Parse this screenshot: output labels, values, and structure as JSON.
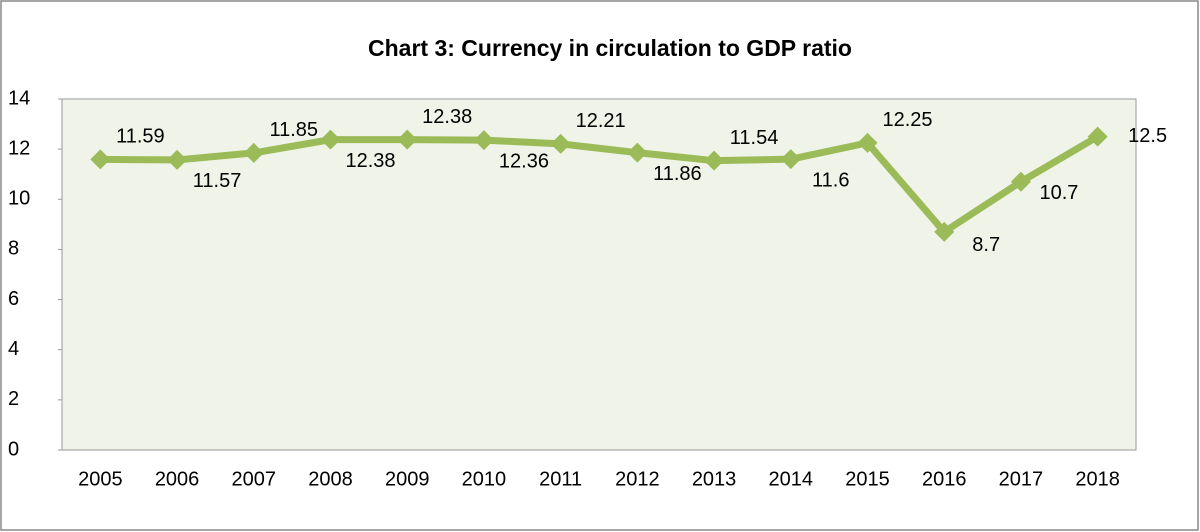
{
  "chart_data": {
    "type": "line",
    "title": "Chart 3: Currency in circulation to GDP ratio",
    "categories": [
      "2005",
      "2006",
      "2007",
      "2008",
      "2009",
      "2010",
      "2011",
      "2012",
      "2013",
      "2014",
      "2015",
      "2016",
      "2017",
      "2018"
    ],
    "series": [
      {
        "name": "Currency in circulation to GDP ratio",
        "color": "#9bbb59",
        "values": [
          11.59,
          11.57,
          11.85,
          12.38,
          12.38,
          12.36,
          12.21,
          11.86,
          11.54,
          11.6,
          12.25,
          8.7,
          10.7,
          12.5
        ]
      }
    ],
    "ylim": [
      0,
      14
    ],
    "yticks": [
      0,
      2,
      4,
      6,
      8,
      10,
      12,
      14
    ],
    "grid": false
  }
}
